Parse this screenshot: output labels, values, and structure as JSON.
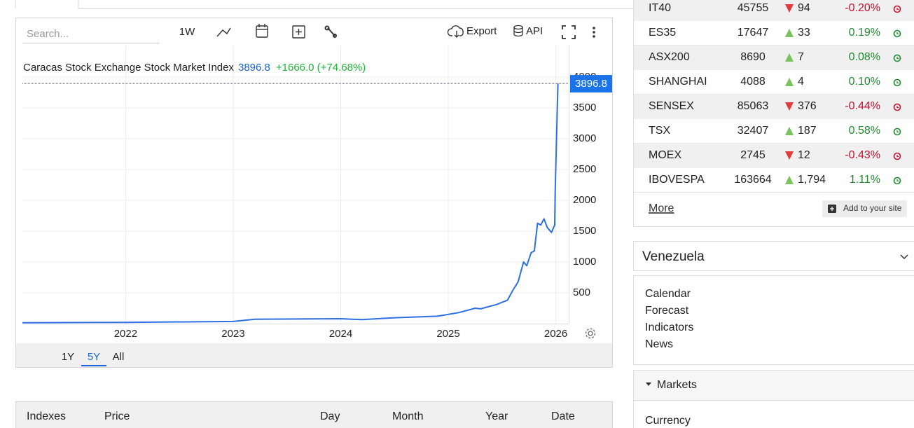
{
  "toolbar": {
    "search_placeholder": "Search...",
    "period": "1W",
    "export": "Export",
    "api": "API"
  },
  "chart_data": {
    "type": "line",
    "title": "Caracas Stock Exchange Stock Market Index",
    "change": "+1666.0 (+74.68%)",
    "color": "#2f6fe4",
    "x": [
      2021.04,
      2022.0,
      2023.0,
      2023.2,
      2024.0,
      2024.2,
      2024.5,
      2024.9,
      2025.1,
      2025.25,
      2025.3,
      2025.45,
      2025.55,
      2025.6,
      2025.65,
      2025.7,
      2025.73,
      2025.77,
      2025.8,
      2025.83,
      2025.86,
      2025.89,
      2025.92,
      2025.96,
      2025.99,
      2025.995,
      2026.02
    ],
    "values": [
      15,
      20,
      35,
      70,
      80,
      65,
      95,
      120,
      180,
      250,
      240,
      310,
      380,
      540,
      680,
      1000,
      940,
      1150,
      1180,
      1630,
      1600,
      1700,
      1560,
      1480,
      1600,
      2200,
      3896.8
    ],
    "xlim": [
      2021.04,
      2026.12
    ],
    "xticks": [
      2022,
      2023,
      2024,
      2025,
      2026
    ],
    "ylim": [
      0,
      4500
    ],
    "yticks": [
      500,
      1000,
      1500,
      2000,
      2500,
      3000,
      3500,
      4000
    ],
    "grid": true
  },
  "range_buttons": [
    "1Y",
    "5Y",
    "All"
  ],
  "bottom_table": {
    "headers": [
      "Indexes",
      "Price",
      "Day",
      "Month",
      "Year",
      "Date"
    ]
  },
  "markets_table": {
    "rows": [
      {
        "name": "IT40",
        "price": "45755",
        "change": "94",
        "percent": "-0.20%",
        "direction": "down"
      },
      {
        "name": "ES35",
        "price": "17647",
        "change": "33",
        "percent": "0.19%",
        "direction": "up"
      },
      {
        "name": "ASX200",
        "price": "8690",
        "change": "7",
        "percent": "0.08%",
        "direction": "up"
      },
      {
        "name": "SHANGHAI",
        "price": "4088",
        "change": "4",
        "percent": "0.10%",
        "direction": "up"
      },
      {
        "name": "SENSEX",
        "price": "85063",
        "change": "376",
        "percent": "-0.44%",
        "direction": "down"
      },
      {
        "name": "TSX",
        "price": "32407",
        "change": "187",
        "percent": "0.58%",
        "direction": "up"
      },
      {
        "name": "MOEX",
        "price": "2745",
        "change": "12",
        "percent": "-0.43%",
        "direction": "down"
      },
      {
        "name": "IBOVESPA",
        "price": "163664",
        "change": "1,794",
        "percent": "1.11%",
        "direction": "up"
      }
    ],
    "more": "More",
    "add_to_site": "Add to your site"
  },
  "country_panel": {
    "title": "Venezuela",
    "links": [
      "Calendar",
      "Forecast",
      "Indicators",
      "News"
    ]
  },
  "markets_panel": {
    "title": "Markets",
    "links": [
      "Currency"
    ]
  }
}
